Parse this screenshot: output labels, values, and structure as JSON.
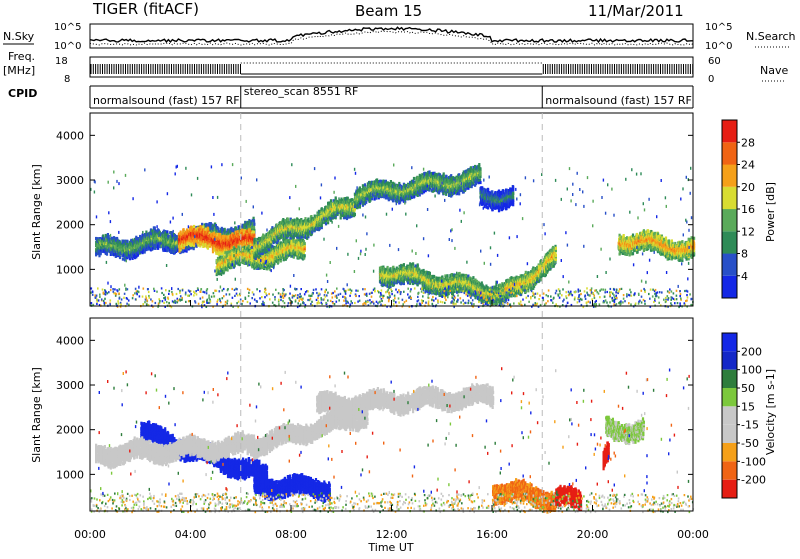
{
  "header": {
    "station": "TIGER (fitACF)",
    "beam": "Beam 15",
    "date": "11/Mar/2011"
  },
  "left_labels": {
    "nsky": "N.Sky",
    "freq_a": "Freq.",
    "freq_b": "[MHz]",
    "cpid": "CPID"
  },
  "right_labels": {
    "nsearch": "N.Search",
    "nave": "Nave"
  },
  "noise_panel": {
    "left_top": "10^5",
    "left_bottom": "10^0",
    "right_top": "10^5",
    "right_bottom": "10^0"
  },
  "freq_panel": {
    "left_top": "18",
    "left_bottom": "8",
    "right_top": "60",
    "right_bottom": "0"
  },
  "cpid_segments": [
    {
      "label": "normalsound (fast) 157 RF",
      "start_hour": 0,
      "end_hour": 6
    },
    {
      "label": "stereo_scan 8551 RF",
      "start_hour": 6,
      "end_hour": 18
    },
    {
      "label": "normalsound (fast) 157 RF",
      "start_hour": 18,
      "end_hour": 24
    }
  ],
  "xaxis": {
    "label": "Time UT",
    "ticks": [
      "00:00",
      "04:00",
      "08:00",
      "12:00",
      "16:00",
      "20:00",
      "00:00"
    ]
  },
  "power_panel": {
    "ylabel": "Slant Range [km]",
    "yticks": [
      "1000",
      "2000",
      "3000",
      "4000"
    ],
    "colorbar_label": "Power [dB]",
    "colorbar_ticks": [
      "4",
      "8",
      "12",
      "16",
      "20",
      "24",
      "28"
    ]
  },
  "velocity_panel": {
    "ylabel": "Slant Range [km]",
    "yticks": [
      "1000",
      "2000",
      "3000",
      "4000"
    ],
    "colorbar_label": "Velocity [m s-1]",
    "colorbar_ticks": [
      "-200",
      "-100",
      "-50",
      "-15",
      "15",
      "50",
      "100",
      "200"
    ]
  },
  "colors": {
    "power_scale": [
      "#1428e6",
      "#2850c8",
      "#2e8b57",
      "#5aaa5a",
      "#d8dc32",
      "#f5a019",
      "#f06414",
      "#e61e14"
    ],
    "velocity_scale": [
      "#e61e14",
      "#f06414",
      "#f5a019",
      "#c8c8c8",
      "#c8c8c8",
      "#7cc83c",
      "#2e7d3c",
      "#1428c8",
      "#1428e6"
    ]
  },
  "chart_data": [
    {
      "type": "heatmap",
      "panel": "power",
      "x_range_hours": [
        0,
        24
      ],
      "ylim_km": [
        180,
        4500
      ],
      "value_range_db": [
        0,
        30
      ],
      "features": [
        {
          "t0": 0.2,
          "t1": 6.5,
          "r_start": 1500,
          "r_end": 1900,
          "power": 14
        },
        {
          "t0": 3.5,
          "t1": 6.5,
          "r_start": 1750,
          "r_end": 1650,
          "power": 28
        },
        {
          "t0": 5.0,
          "t1": 8.5,
          "r_start": 1200,
          "r_end": 1500,
          "power": 20
        },
        {
          "t0": 6.5,
          "t1": 10.5,
          "r_start": 1600,
          "r_end": 2500,
          "power": 18
        },
        {
          "t0": 10.5,
          "t1": 15.5,
          "r_start": 2700,
          "r_end": 3100,
          "power": 16
        },
        {
          "t0": 15.5,
          "t1": 16.8,
          "r_start": 2700,
          "r_end": 2650,
          "power": 10
        },
        {
          "t0": 11.5,
          "t1": 16.5,
          "r_start": 1000,
          "r_end": 500,
          "power": 18
        },
        {
          "t0": 16.5,
          "t1": 18.5,
          "r_start": 500,
          "r_end": 1300,
          "power": 20
        },
        {
          "t0": 21.0,
          "t1": 24.0,
          "r_start": 1700,
          "r_end": 1500,
          "power": 22
        }
      ]
    },
    {
      "type": "heatmap",
      "panel": "velocity",
      "x_range_hours": [
        0,
        24
      ],
      "ylim_km": [
        180,
        4500
      ],
      "value_range_ms": [
        -250,
        250
      ],
      "features": [
        {
          "t0": 2.0,
          "t1": 7.0,
          "r_start": 2000,
          "r_end": 1000,
          "velocity": 200
        },
        {
          "t0": 6.5,
          "t1": 9.5,
          "r_start": 800,
          "r_end": 750,
          "velocity": 200
        },
        {
          "t0": 0.2,
          "t1": 6.5,
          "r_start": 1500,
          "r_end": 1700,
          "velocity": 0
        },
        {
          "t0": 6.5,
          "t1": 11.0,
          "r_start": 1700,
          "r_end": 2400,
          "velocity": 0
        },
        {
          "t0": 9.0,
          "t1": 16.0,
          "r_start": 2600,
          "r_end": 2800,
          "velocity": 0
        },
        {
          "t0": 16.0,
          "t1": 18.5,
          "r_start": 700,
          "r_end": 500,
          "velocity": -80
        },
        {
          "t0": 18.5,
          "t1": 19.5,
          "r_start": 500,
          "r_end": 500,
          "velocity": -200
        },
        {
          "t0": 20.4,
          "t1": 20.6,
          "r_start": 1300,
          "r_end": 1500,
          "velocity": -200
        },
        {
          "t0": 20.5,
          "t1": 22.0,
          "r_start": 2100,
          "r_end": 2000,
          "velocity": 40
        }
      ]
    }
  ]
}
